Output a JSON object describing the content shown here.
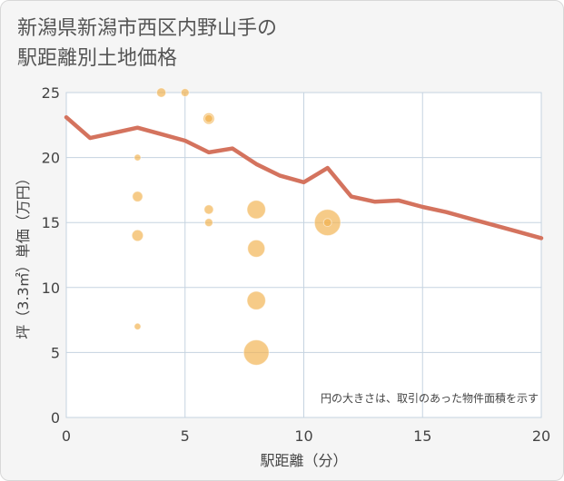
{
  "title_lines": [
    "新潟県新潟市西区内野山手の",
    "駅距離別土地価格"
  ],
  "colors": {
    "line": "#d4735e",
    "bubble": "#f2b34f",
    "grid": "#c5d3e0",
    "plot_bg": "#ffffff"
  },
  "chart_data": {
    "type": "scatter",
    "title": "新潟県新潟市西区内野山手の駅距離別土地価格",
    "xlabel": "駅距離（分）",
    "ylabel": "坪（3.3㎡）単価（万円）",
    "xlim": [
      0,
      20
    ],
    "ylim": [
      0,
      25
    ],
    "x_ticks": [
      0,
      5,
      10,
      15,
      20
    ],
    "y_ticks": [
      0,
      5,
      10,
      15,
      20,
      25
    ],
    "grid": true,
    "note": "円の大きさは、取引のあった物件面積を示す",
    "line": {
      "x": [
        0,
        1,
        2,
        3,
        4,
        5,
        6,
        7,
        8,
        9,
        10,
        11,
        12,
        13,
        14,
        15,
        16,
        17,
        18,
        19,
        20
      ],
      "y": [
        23.1,
        21.5,
        21.9,
        22.3,
        21.8,
        21.3,
        20.4,
        20.7,
        19.5,
        18.6,
        18.1,
        19.2,
        17.0,
        16.6,
        16.7,
        16.2,
        15.8,
        15.3,
        14.8,
        14.3,
        13.8
      ]
    },
    "bubbles": [
      {
        "x": 3,
        "y": 7,
        "size": 1
      },
      {
        "x": 3,
        "y": 14,
        "size": 3
      },
      {
        "x": 3,
        "y": 17,
        "size": 2.5
      },
      {
        "x": 3,
        "y": 20,
        "size": 1
      },
      {
        "x": 4,
        "y": 25,
        "size": 2
      },
      {
        "x": 5,
        "y": 25,
        "size": 1.5
      },
      {
        "x": 6,
        "y": 23,
        "size": 3
      },
      {
        "x": 6,
        "y": 23,
        "size": 1.5
      },
      {
        "x": 6,
        "y": 16,
        "size": 2
      },
      {
        "x": 6,
        "y": 15,
        "size": 1.5
      },
      {
        "x": 8,
        "y": 16,
        "size": 8
      },
      {
        "x": 8,
        "y": 13,
        "size": 7
      },
      {
        "x": 8,
        "y": 9,
        "size": 8
      },
      {
        "x": 8,
        "y": 5,
        "size": 15
      },
      {
        "x": 11,
        "y": 15,
        "size": 16
      },
      {
        "x": 11,
        "y": 15,
        "size": 1.5
      }
    ]
  }
}
